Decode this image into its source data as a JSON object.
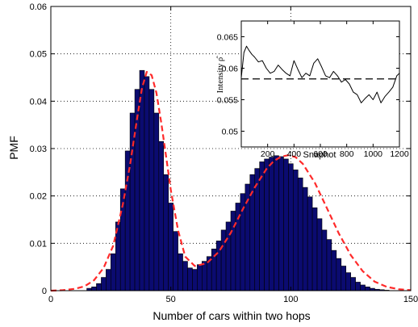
{
  "colors": {
    "bar_fill": "#0b0b70",
    "bar_edge": "#000000",
    "fit_line": "#ff2a2a",
    "axes": "#000000",
    "grid": "#000000",
    "inset_trace": "#000000"
  },
  "chart_data": [
    {
      "type": "bar",
      "title": "",
      "xlabel": "Number of cars within two hops",
      "ylabel": "PMF",
      "xlim": [
        0,
        150
      ],
      "ylim": [
        0,
        0.06
      ],
      "xticks": [
        "0",
        "50",
        "100",
        "150"
      ],
      "yticks": [
        "0",
        "0.01",
        "0.02",
        "0.03",
        "0.04",
        "0.05",
        "0.06"
      ],
      "grid": "dotted",
      "bar_width": 2,
      "series": [
        {
          "kind": "histogram",
          "x": [
            16,
            18,
            20,
            22,
            24,
            26,
            28,
            30,
            32,
            34,
            36,
            38,
            40,
            42,
            44,
            46,
            48,
            50,
            52,
            54,
            56,
            58,
            60,
            62,
            64,
            66,
            68,
            70,
            72,
            74,
            76,
            78,
            80,
            82,
            84,
            86,
            88,
            90,
            92,
            94,
            96,
            98,
            100,
            102,
            104,
            106,
            108,
            110,
            112,
            114,
            116,
            118,
            120,
            122,
            124,
            126,
            128,
            130,
            132,
            134,
            136,
            138,
            140
          ],
          "values": [
            0.0005,
            0.0008,
            0.0015,
            0.0028,
            0.0045,
            0.0078,
            0.0145,
            0.0215,
            0.0295,
            0.0375,
            0.0425,
            0.0465,
            0.0452,
            0.0425,
            0.0375,
            0.0315,
            0.0245,
            0.0185,
            0.0125,
            0.0078,
            0.0062,
            0.0048,
            0.0045,
            0.0055,
            0.0062,
            0.0072,
            0.0088,
            0.0105,
            0.0128,
            0.0145,
            0.0168,
            0.0185,
            0.0205,
            0.0225,
            0.0245,
            0.0258,
            0.0272,
            0.0278,
            0.0282,
            0.0285,
            0.0283,
            0.0278,
            0.0268,
            0.0255,
            0.0238,
            0.0218,
            0.0198,
            0.0175,
            0.0152,
            0.0128,
            0.0108,
            0.0085,
            0.0068,
            0.0052,
            0.0038,
            0.0028,
            0.0018,
            0.0012,
            0.0008,
            0.0005,
            0.0003,
            0.0002,
            0.0001
          ]
        },
        {
          "kind": "fit_dashed",
          "x": [
            0,
            5,
            10,
            14,
            18,
            22,
            26,
            30,
            33,
            36,
            38,
            40,
            42,
            44,
            46,
            48,
            50,
            53,
            56,
            60,
            65,
            70,
            75,
            80,
            85,
            90,
            93,
            96,
            99,
            102,
            105,
            110,
            115,
            120,
            125,
            130,
            135,
            140,
            145,
            150
          ],
          "values": [
            0,
            0.0001,
            0.0004,
            0.0009,
            0.0022,
            0.0048,
            0.0095,
            0.0182,
            0.0265,
            0.0365,
            0.0428,
            0.0462,
            0.0455,
            0.0418,
            0.0355,
            0.0285,
            0.0212,
            0.0128,
            0.0072,
            0.0052,
            0.0058,
            0.0082,
            0.0122,
            0.0172,
            0.0218,
            0.0258,
            0.0274,
            0.0283,
            0.0286,
            0.0282,
            0.0268,
            0.0228,
            0.0175,
            0.0121,
            0.0075,
            0.0041,
            0.0019,
            0.0008,
            0.0003,
            0.0001
          ]
        }
      ]
    },
    {
      "type": "line",
      "xlabel": "Snaphot",
      "ylabel": "Intensity ρ̂",
      "xlim": [
        0,
        1200
      ],
      "ylim": [
        0.0475,
        0.0675
      ],
      "xticks": [
        "200",
        "400",
        "600",
        "800",
        "1000",
        "1200"
      ],
      "yticks": [
        "0.05",
        "0.055",
        "0.06",
        "0.065"
      ],
      "reference_line": 0.0583,
      "series": [
        {
          "kind": "trace",
          "x": [
            0,
            20,
            40,
            60,
            80,
            100,
            130,
            160,
            190,
            220,
            250,
            280,
            310,
            340,
            370,
            400,
            430,
            460,
            490,
            520,
            550,
            580,
            610,
            640,
            670,
            700,
            730,
            760,
            790,
            820,
            850,
            880,
            910,
            940,
            970,
            1000,
            1030,
            1060,
            1090,
            1120,
            1150,
            1180,
            1200
          ],
          "values": [
            0.0585,
            0.0625,
            0.0635,
            0.0628,
            0.0622,
            0.0618,
            0.061,
            0.0612,
            0.06,
            0.0592,
            0.0595,
            0.0605,
            0.0598,
            0.0592,
            0.0588,
            0.0612,
            0.0598,
            0.0585,
            0.0592,
            0.0588,
            0.0608,
            0.0615,
            0.0602,
            0.0588,
            0.0585,
            0.0595,
            0.0588,
            0.0578,
            0.0582,
            0.0575,
            0.0562,
            0.0558,
            0.0545,
            0.0552,
            0.0558,
            0.055,
            0.0562,
            0.0545,
            0.0555,
            0.0562,
            0.057,
            0.0588,
            0.0592
          ]
        }
      ]
    }
  ]
}
